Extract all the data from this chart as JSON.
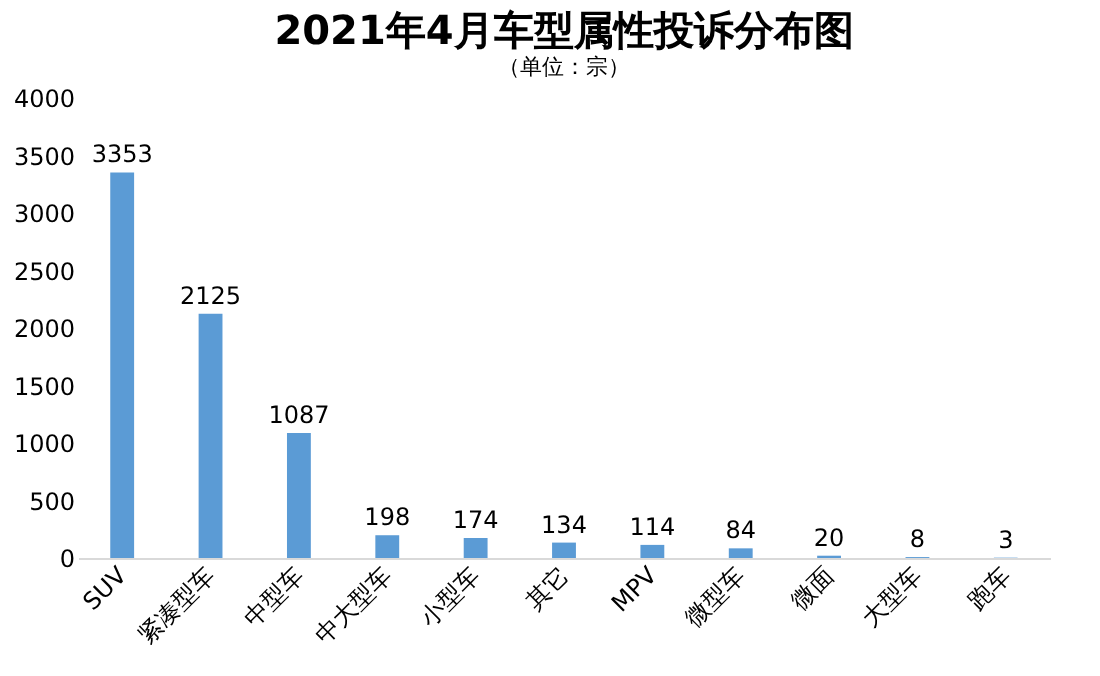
{
  "chart_data": {
    "type": "bar",
    "title": "2021年4月车型属性投诉分布图",
    "subtitle": "（单位：宗）",
    "categories": [
      "SUV",
      "紧凑型车",
      "中型车",
      "中大型车",
      "小型车",
      "其它",
      "MPV",
      "微型车",
      "微面",
      "大型车",
      "跑车"
    ],
    "values": [
      3353,
      2125,
      1087,
      198,
      174,
      134,
      114,
      84,
      20,
      8,
      3
    ],
    "color": "#5b9bd5",
    "ylim": [
      0,
      4000
    ],
    "yticks": [
      0,
      500,
      1000,
      1500,
      2000,
      2500,
      3000,
      3500,
      4000
    ],
    "data_labels": true
  }
}
